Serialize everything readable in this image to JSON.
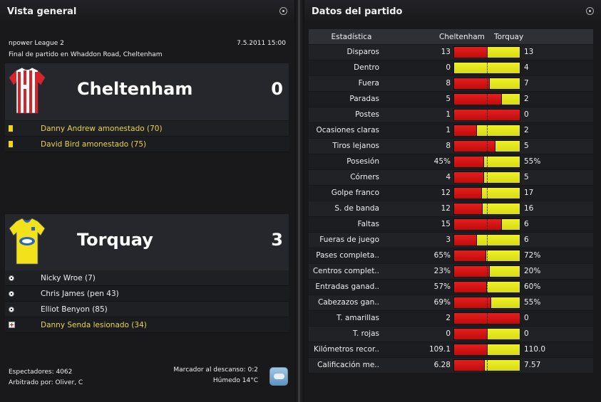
{
  "left_panel": {
    "title": "Vista general",
    "competition": "npower League 2",
    "datetime": "7.5.2011 15:00",
    "venue_text": "Final de partido en Whaddon Road, Cheltenham",
    "home": {
      "name": "Cheltenham",
      "score": "0",
      "shirt_colors": {
        "primary": "#d8232a",
        "secondary": "#ffffff"
      },
      "events": [
        {
          "icon": "yellow-card-icon",
          "text": "Danny Andrew amonestado (70)",
          "highlight": true
        },
        {
          "icon": "yellow-card-icon",
          "text": "David Bird amonestado (75)",
          "highlight": true
        }
      ]
    },
    "away": {
      "name": "Torquay",
      "score": "3",
      "shirt_colors": {
        "primary": "#f2e21c",
        "secondary": "#2a66b8"
      },
      "events": [
        {
          "icon": "ball-icon",
          "text": "Nicky Wroe (7)",
          "highlight": false
        },
        {
          "icon": "ball-icon",
          "text": "Chris James (pen 43)",
          "highlight": false
        },
        {
          "icon": "ball-icon",
          "text": "Elliot Benyon (85)",
          "highlight": false
        },
        {
          "icon": "injury-icon",
          "text": "Danny Senda lesionado (34)",
          "highlight": true
        }
      ]
    },
    "footer": {
      "attendance": "Espectadores: 4062",
      "referee": "Arbitrado por: Oliver, C",
      "halftime": "Marcador al descanso: 0:2",
      "weather": "Húmedo 14°C"
    }
  },
  "right_panel": {
    "title": "Datos del partido",
    "header": {
      "stat": "Estadística",
      "home": "Cheltenham",
      "away": "Torquay"
    },
    "stats": [
      {
        "label": "Disparos",
        "home": "13",
        "away": "13",
        "home_share": 0.5
      },
      {
        "label": "Dentro",
        "home": "0",
        "away": "4",
        "home_share": 0.0
      },
      {
        "label": "Fuera",
        "home": "8",
        "away": "7",
        "home_share": 0.533
      },
      {
        "label": "Paradas",
        "home": "5",
        "away": "2",
        "home_share": 0.714
      },
      {
        "label": "Postes",
        "home": "1",
        "away": "0",
        "home_share": 1.0
      },
      {
        "label": "Ocasiones claras",
        "home": "1",
        "away": "2",
        "home_share": 0.333
      },
      {
        "label": "Tiros lejanos",
        "home": "8",
        "away": "5",
        "home_share": 0.615
      },
      {
        "label": "Posesión",
        "home": "45%",
        "away": "55%",
        "home_share": 0.45
      },
      {
        "label": "Córners",
        "home": "4",
        "away": "5",
        "home_share": 0.444
      },
      {
        "label": "Golpe franco",
        "home": "12",
        "away": "17",
        "home_share": 0.414
      },
      {
        "label": "S. de banda",
        "home": "12",
        "away": "16",
        "home_share": 0.429
      },
      {
        "label": "Faltas",
        "home": "15",
        "away": "6",
        "home_share": 0.714
      },
      {
        "label": "Fueras de juego",
        "home": "3",
        "away": "6",
        "home_share": 0.333
      },
      {
        "label": "Pases completa..",
        "home": "65%",
        "away": "72%",
        "home_share": 0.474
      },
      {
        "label": "Centros complet..",
        "home": "23%",
        "away": "20%",
        "home_share": 0.535
      },
      {
        "label": "Entradas ganad..",
        "home": "57%",
        "away": "60%",
        "home_share": 0.487
      },
      {
        "label": "Cabezazos gan..",
        "home": "69%",
        "away": "55%",
        "home_share": 0.556
      },
      {
        "label": "T. amarillas",
        "home": "2",
        "away": "0",
        "home_share": 1.0
      },
      {
        "label": "T. rojas",
        "home": "0",
        "away": "0",
        "home_share": 0.5
      },
      {
        "label": "Kilómetros recor..",
        "home": "109.1",
        "away": "110.0",
        "home_share": 0.498
      },
      {
        "label": "Calificación me..",
        "home": "6.28",
        "away": "7.57",
        "home_share": 0.453
      }
    ]
  },
  "colors": {
    "home_bar": "#d41212",
    "away_bar": "#e4e61e",
    "highlight_text": "#e8d44d"
  }
}
